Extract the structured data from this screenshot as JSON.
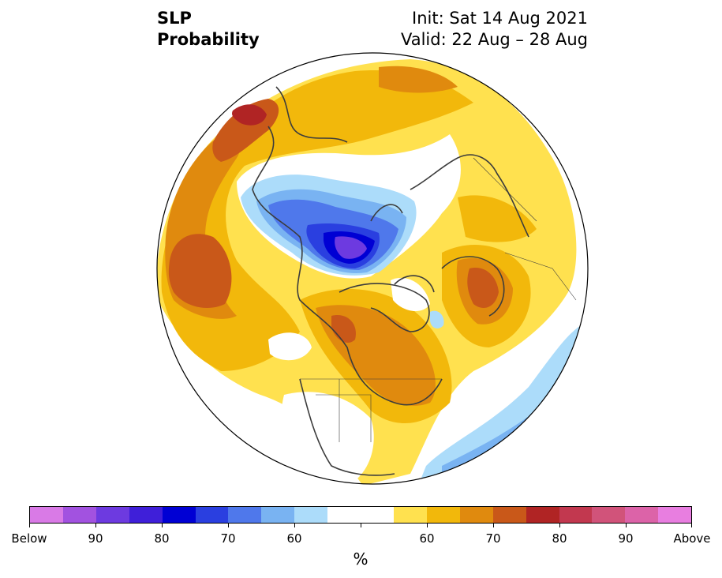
{
  "title": {
    "left_line1": "SLP",
    "left_line2": "Probability",
    "right_line1": "Init: Sat 14 Aug 2021",
    "right_line2": "Valid: 22 Aug – 28 Aug"
  },
  "colorbar": {
    "unit": "%",
    "labels": [
      "Below",
      "90",
      "80",
      "70",
      "60",
      "60",
      "70",
      "80",
      "90",
      "Above"
    ],
    "colors": [
      "#d97ae6",
      "#a252e0",
      "#6d3ae0",
      "#3f1fd9",
      "#0000d4",
      "#2a3fe0",
      "#4f78eb",
      "#79b3f2",
      "#acdcfa",
      "#ffffff",
      "#ffffff",
      "#ffe14f",
      "#f2b80b",
      "#e08a0e",
      "#c95819",
      "#b02424",
      "#c2384f",
      "#d1537a",
      "#dc63a8",
      "#e87ee0"
    ]
  },
  "map": {
    "projection": "north-polar-stereographic",
    "variable": "sea-level-pressure-probability",
    "features": [
      {
        "name": "western-north-america-above",
        "category": "above-60"
      },
      {
        "name": "north-pacific-above-high",
        "category": "above-70"
      },
      {
        "name": "arctic-ocean-below-core",
        "category": "below-80"
      },
      {
        "name": "canada-above",
        "category": "above-70"
      },
      {
        "name": "scandinavia-above",
        "category": "above-70"
      },
      {
        "name": "atlantic-below",
        "category": "below-60"
      }
    ]
  }
}
